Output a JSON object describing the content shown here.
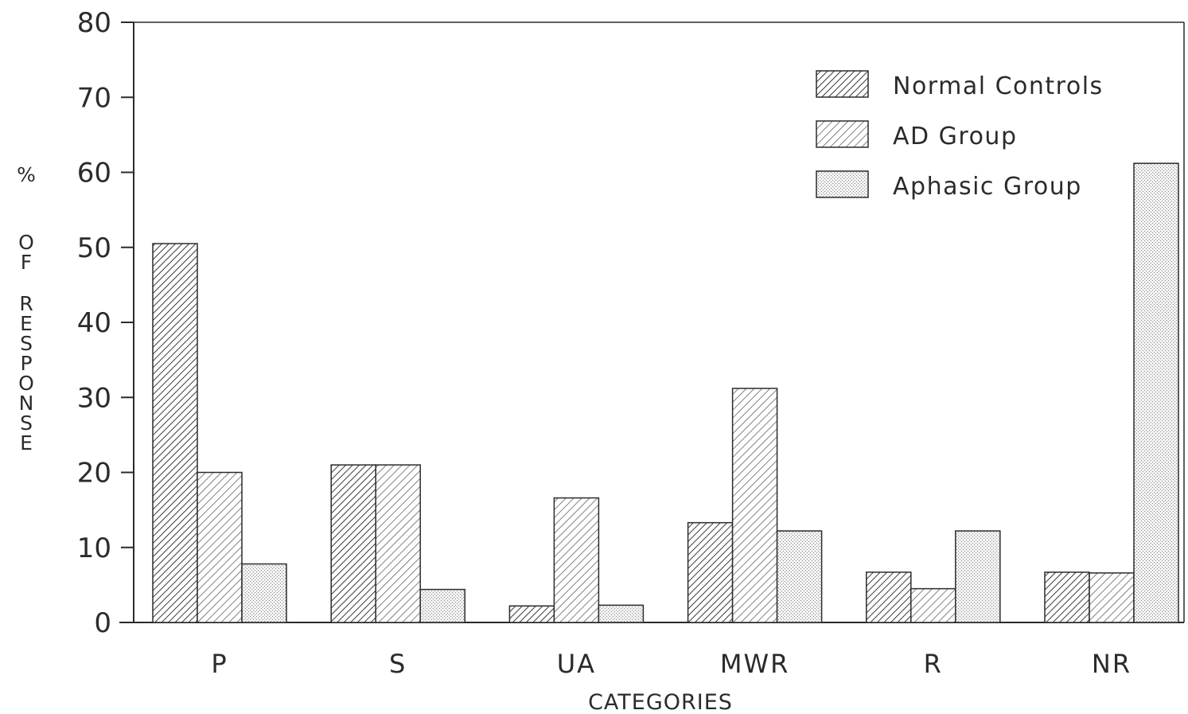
{
  "chart_data": {
    "type": "bar",
    "title": "",
    "xlabel": "CATEGORIES",
    "ylabel": "% OF RESPONSE",
    "ylim": [
      0,
      80
    ],
    "yticks": [
      0,
      10,
      20,
      30,
      40,
      50,
      60,
      70,
      80
    ],
    "categories": [
      "P",
      "S",
      "UA",
      "MWR",
      "R",
      "NR"
    ],
    "series": [
      {
        "name": "Normal Controls",
        "values": [
          50.5,
          21,
          2.2,
          13.3,
          6.7,
          6.7
        ],
        "pattern": "hatch-dense"
      },
      {
        "name": "AD Group",
        "values": [
          20,
          21,
          16.6,
          31.2,
          4.5,
          6.6
        ],
        "pattern": "hatch-light"
      },
      {
        "name": "Aphasic Group",
        "values": [
          7.8,
          4.4,
          2.3,
          12.2,
          12.2,
          61.2
        ],
        "pattern": "stipple"
      }
    ],
    "legend_position": "top-right",
    "grid": false,
    "colors": {
      "ink": "#2b2b2b",
      "hatch_dense": "#3a3a3a",
      "hatch_light": "#5a5a5a",
      "stipple": "#9a9a9a"
    }
  }
}
